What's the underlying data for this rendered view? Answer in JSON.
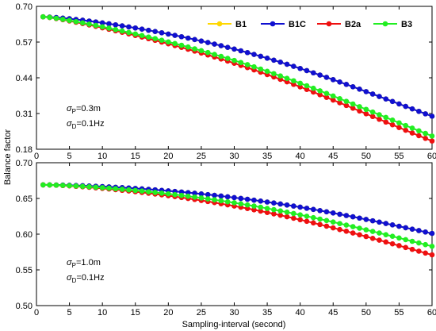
{
  "chart_data": [
    {
      "type": "line",
      "ylabel": "Balance factor",
      "ylim": [
        0.18,
        0.7
      ],
      "yticks": [
        "0.18",
        "0.31",
        "0.44",
        "0.57",
        "0.70"
      ],
      "xlim": [
        0,
        60
      ],
      "xticks": [
        "0",
        "5",
        "10",
        "15",
        "20",
        "25",
        "30",
        "35",
        "40",
        "45",
        "50",
        "55",
        "60"
      ],
      "legend": "top-right",
      "annotation": {
        "sigma_p": "=0.3m",
        "sigma_d": "=0.1Hz"
      },
      "series": [
        {
          "name": "B1",
          "color": "#FFD700",
          "endpoints": {
            "x": [
              1,
              60
            ],
            "y": [
              0.662,
              0.3
            ]
          },
          "curve": 1.45
        },
        {
          "name": "B1C",
          "color": "#1010D0",
          "endpoints": {
            "x": [
              1,
              60
            ],
            "y": [
              0.662,
              0.3
            ]
          },
          "curve": 1.45
        },
        {
          "name": "B2a",
          "color": "#EE1010",
          "endpoints": {
            "x": [
              1,
              60
            ],
            "y": [
              0.662,
              0.21
            ]
          },
          "curve": 1.25
        },
        {
          "name": "B3",
          "color": "#22EE22",
          "endpoints": {
            "x": [
              1,
              60
            ],
            "y": [
              0.662,
              0.228
            ]
          },
          "curve": 1.28
        }
      ]
    },
    {
      "type": "line",
      "xlabel": "Sampling-interval (second)",
      "ylabel": "Balance factor",
      "ylim": [
        0.5,
        0.7
      ],
      "yticks": [
        "0.50",
        "0.55",
        "0.60",
        "0.65",
        "0.70"
      ],
      "xlim": [
        0,
        60
      ],
      "xticks": [
        "0",
        "5",
        "10",
        "15",
        "20",
        "25",
        "30",
        "35",
        "40",
        "45",
        "50",
        "55",
        "60"
      ],
      "annotation": {
        "sigma_p": "=1.0m",
        "sigma_d": "=0.1Hz"
      },
      "series": [
        {
          "name": "B1",
          "color": "#FFD700",
          "endpoints": {
            "x": [
              1,
              60
            ],
            "y": [
              0.669,
              0.601
            ]
          },
          "curve": 1.75
        },
        {
          "name": "B1C",
          "color": "#1010D0",
          "endpoints": {
            "x": [
              1,
              60
            ],
            "y": [
              0.669,
              0.601
            ]
          },
          "curve": 1.75
        },
        {
          "name": "B2a",
          "color": "#EE1010",
          "endpoints": {
            "x": [
              1,
              60
            ],
            "y": [
              0.669,
              0.571
            ]
          },
          "curve": 1.55
        },
        {
          "name": "B3",
          "color": "#22EE22",
          "endpoints": {
            "x": [
              1,
              60
            ],
            "y": [
              0.669,
              0.583
            ]
          },
          "curve": 1.6
        }
      ]
    }
  ],
  "shared": {
    "ylabel": "Balance factor",
    "xlabel": "Sampling-interval (second)",
    "sigma_symbol": "σ",
    "sub_p": "P",
    "sub_d": "D"
  }
}
